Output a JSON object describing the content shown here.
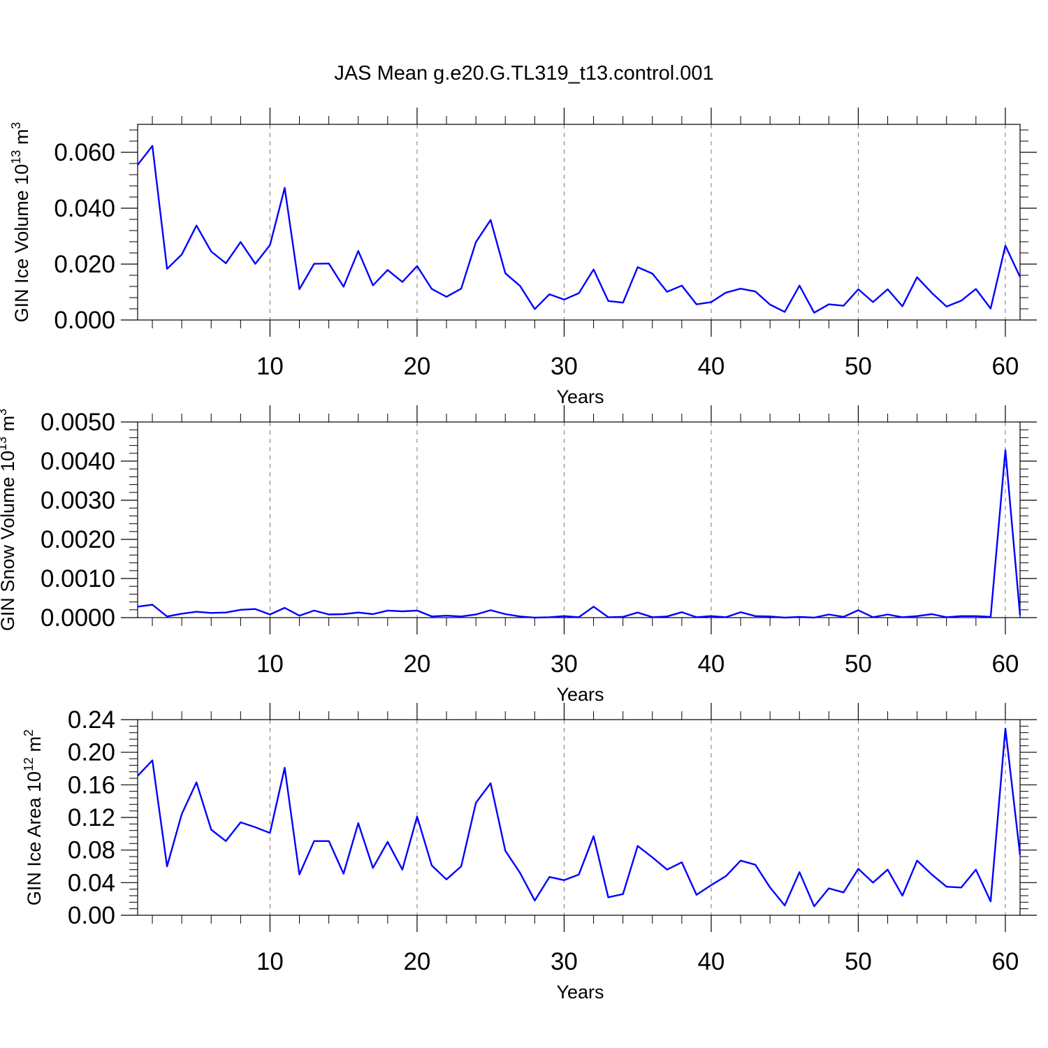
{
  "title": "JAS Mean g.e20.G.TL319_t13.control.001",
  "colors": {
    "series": "#0000ff",
    "axes": "#000000",
    "grid": "#777777"
  },
  "chart_data": [
    {
      "type": "line",
      "ylabel_main": "GIN Ice Volume 10",
      "ylabel_sup": "13",
      "ylabel_unit": " m",
      "ylabel_unit_sup": "3",
      "xlabel": "Years",
      "xlim": [
        1,
        61
      ],
      "ylim": [
        0,
        0.07
      ],
      "yticks": [
        0,
        0.02,
        0.04,
        0.06
      ],
      "ytick_labels": [
        "0.000",
        "0.020",
        "0.040",
        "0.060"
      ],
      "xticks": [
        10,
        20,
        30,
        40,
        50,
        60
      ],
      "xtick_labels": [
        "10",
        "20",
        "30",
        "40",
        "50",
        "60"
      ],
      "vertical_grid": "dashed at x tick positions",
      "x": [
        1,
        2,
        3,
        4,
        5,
        6,
        7,
        8,
        9,
        10,
        11,
        12,
        13,
        14,
        15,
        16,
        17,
        18,
        19,
        20,
        21,
        22,
        23,
        24,
        25,
        26,
        27,
        28,
        29,
        30,
        31,
        32,
        33,
        34,
        35,
        36,
        37,
        38,
        39,
        40,
        41,
        42,
        43,
        44,
        45,
        46,
        47,
        48,
        49,
        50,
        51,
        52,
        53,
        54,
        55,
        56,
        57,
        58,
        59,
        60,
        61
      ],
      "series": [
        {
          "values": [
            0.0555,
            0.0623,
            0.0183,
            0.0234,
            0.0338,
            0.0245,
            0.0203,
            0.0279,
            0.0201,
            0.0268,
            0.0473,
            0.011,
            0.0201,
            0.0202,
            0.0119,
            0.0247,
            0.0124,
            0.0179,
            0.0136,
            0.0193,
            0.0111,
            0.0083,
            0.0112,
            0.0279,
            0.0358,
            0.0167,
            0.0122,
            0.0039,
            0.0092,
            0.0073,
            0.0096,
            0.0181,
            0.0068,
            0.0062,
            0.0189,
            0.0166,
            0.0101,
            0.0123,
            0.0056,
            0.0064,
            0.0098,
            0.0112,
            0.0102,
            0.0055,
            0.0029,
            0.0123,
            0.0026,
            0.0056,
            0.0051,
            0.011,
            0.0064,
            0.011,
            0.0049,
            0.0153,
            0.0097,
            0.0048,
            0.0069,
            0.0111,
            0.0041,
            0.0266,
            0.0154
          ]
        }
      ]
    },
    {
      "type": "line",
      "ylabel_main": "GIN Snow Volume 10",
      "ylabel_sup": "13",
      "ylabel_unit": " m",
      "ylabel_unit_sup": "3",
      "xlabel": "Years",
      "xlim": [
        1,
        61
      ],
      "ylim": [
        0,
        0.005
      ],
      "yticks": [
        0,
        0.001,
        0.002,
        0.003,
        0.004,
        0.005
      ],
      "ytick_labels": [
        "0.0000",
        "0.0010",
        "0.0020",
        "0.0030",
        "0.0040",
        "0.0050"
      ],
      "xticks": [
        10,
        20,
        30,
        40,
        50,
        60
      ],
      "xtick_labels": [
        "10",
        "20",
        "30",
        "40",
        "50",
        "60"
      ],
      "vertical_grid": "dashed at x tick positions",
      "x": [
        1,
        2,
        3,
        4,
        5,
        6,
        7,
        8,
        9,
        10,
        11,
        12,
        13,
        14,
        15,
        16,
        17,
        18,
        19,
        20,
        21,
        22,
        23,
        24,
        25,
        26,
        27,
        28,
        29,
        30,
        31,
        32,
        33,
        34,
        35,
        36,
        37,
        38,
        39,
        40,
        41,
        42,
        43,
        44,
        45,
        46,
        47,
        48,
        49,
        50,
        51,
        52,
        53,
        54,
        55,
        56,
        57,
        58,
        59,
        60,
        61
      ],
      "series": [
        {
          "values": [
            0.00028,
            0.00033,
            3e-05,
            0.0001,
            0.00015,
            0.00012,
            0.00013,
            0.0002,
            0.00022,
            8e-05,
            0.00025,
            5e-05,
            0.00018,
            8e-05,
            9e-05,
            0.00013,
            9e-05,
            0.00018,
            0.00016,
            0.00018,
            3e-05,
            5e-05,
            3e-05,
            8e-05,
            0.00019,
            9e-05,
            3e-05,
            0.0,
            1e-05,
            4e-05,
            1e-05,
            0.00028,
            1e-05,
            2e-05,
            0.00013,
            1e-05,
            3e-05,
            0.00014,
            1e-05,
            4e-05,
            1e-05,
            0.00014,
            4e-05,
            3e-05,
            0.0,
            2e-05,
            0.0,
            8e-05,
            2e-05,
            0.00019,
            1e-05,
            8e-05,
            1e-05,
            4e-05,
            9e-05,
            1e-05,
            4e-05,
            4e-05,
            2e-05,
            0.00428,
            6e-05
          ]
        }
      ]
    },
    {
      "type": "line",
      "ylabel_main": "GIN Ice Area 10",
      "ylabel_sup": "12",
      "ylabel_unit": " m",
      "ylabel_unit_sup": "2",
      "xlabel": "Years",
      "xlim": [
        1,
        61
      ],
      "ylim": [
        0,
        0.24
      ],
      "yticks": [
        0,
        0.04,
        0.08,
        0.12,
        0.16,
        0.2,
        0.24
      ],
      "ytick_labels": [
        "0.00",
        "0.04",
        "0.08",
        "0.12",
        "0.16",
        "0.20",
        "0.24"
      ],
      "xticks": [
        10,
        20,
        30,
        40,
        50,
        60
      ],
      "xtick_labels": [
        "10",
        "20",
        "30",
        "40",
        "50",
        "60"
      ],
      "vertical_grid": "dashed at x tick positions",
      "x": [
        1,
        2,
        3,
        4,
        5,
        6,
        7,
        8,
        9,
        10,
        11,
        12,
        13,
        14,
        15,
        16,
        17,
        18,
        19,
        20,
        21,
        22,
        23,
        24,
        25,
        26,
        27,
        28,
        29,
        30,
        31,
        32,
        33,
        34,
        35,
        36,
        37,
        38,
        39,
        40,
        41,
        42,
        43,
        44,
        45,
        46,
        47,
        48,
        49,
        50,
        51,
        52,
        53,
        54,
        55,
        56,
        57,
        58,
        59,
        60,
        61
      ],
      "series": [
        {
          "values": [
            0.171,
            0.19,
            0.06,
            0.124,
            0.163,
            0.105,
            0.091,
            0.114,
            0.108,
            0.101,
            0.181,
            0.05,
            0.091,
            0.091,
            0.051,
            0.113,
            0.058,
            0.09,
            0.056,
            0.121,
            0.061,
            0.044,
            0.06,
            0.138,
            0.162,
            0.079,
            0.052,
            0.018,
            0.047,
            0.043,
            0.05,
            0.097,
            0.022,
            0.026,
            0.085,
            0.071,
            0.056,
            0.065,
            0.025,
            0.037,
            0.048,
            0.067,
            0.062,
            0.034,
            0.012,
            0.053,
            0.011,
            0.033,
            0.028,
            0.057,
            0.04,
            0.056,
            0.024,
            0.067,
            0.05,
            0.035,
            0.034,
            0.056,
            0.017,
            0.229,
            0.074
          ]
        }
      ]
    }
  ]
}
